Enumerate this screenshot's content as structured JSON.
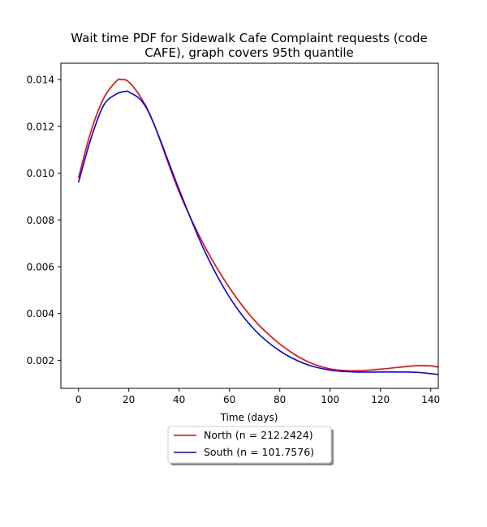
{
  "chart_data": {
    "type": "line",
    "title_lines": [
      "Wait time PDF for Sidewalk Cafe Complaint  requests (code",
      "CAFE), graph covers 95th quantile"
    ],
    "xlabel": "Time (days)",
    "ylabel": "",
    "xlim": [
      -7,
      143
    ],
    "ylim": [
      0.0008,
      0.0147
    ],
    "xticks": [
      0,
      20,
      40,
      60,
      80,
      100,
      120,
      140
    ],
    "xtick_labels": [
      "0",
      "20",
      "40",
      "60",
      "80",
      "100",
      "120",
      "140"
    ],
    "yticks": [
      0.002,
      0.004,
      0.006,
      0.008,
      0.01,
      0.012,
      0.014
    ],
    "ytick_labels": [
      "0.002",
      "0.004",
      "0.006",
      "0.008",
      "0.010",
      "0.012",
      "0.014"
    ],
    "grid": false,
    "legend_placement": "below plot, centered",
    "series": [
      {
        "name": "North (n = 212.2424)",
        "color": "#ff0000",
        "x": [
          0,
          5,
          10,
          15,
          17,
          20,
          25,
          30,
          40,
          50,
          60,
          70,
          80,
          90,
          100,
          110,
          120,
          130,
          135,
          140,
          143
        ],
        "y": [
          0.0098,
          0.0118,
          0.0132,
          0.01393,
          0.014,
          0.0139,
          0.0132,
          0.0121,
          0.0092,
          0.0069,
          0.0051,
          0.0037,
          0.0027,
          0.002,
          0.00163,
          0.00155,
          0.00162,
          0.00173,
          0.00177,
          0.00176,
          0.00171
        ]
      },
      {
        "name": "South (n = 101.7576)",
        "color": "#0000ff",
        "x": [
          0,
          5,
          10,
          15,
          19,
          20,
          25,
          30,
          40,
          50,
          60,
          70,
          80,
          90,
          100,
          110,
          120,
          130,
          135,
          140,
          143
        ],
        "y": [
          0.0096,
          0.0115,
          0.0129,
          0.01338,
          0.0135,
          0.01347,
          0.0131,
          0.0121,
          0.0093,
          0.0067,
          0.0047,
          0.0033,
          0.0024,
          0.00185,
          0.00158,
          0.0015,
          0.0015,
          0.0015,
          0.00148,
          0.00143,
          0.00139
        ]
      }
    ]
  }
}
